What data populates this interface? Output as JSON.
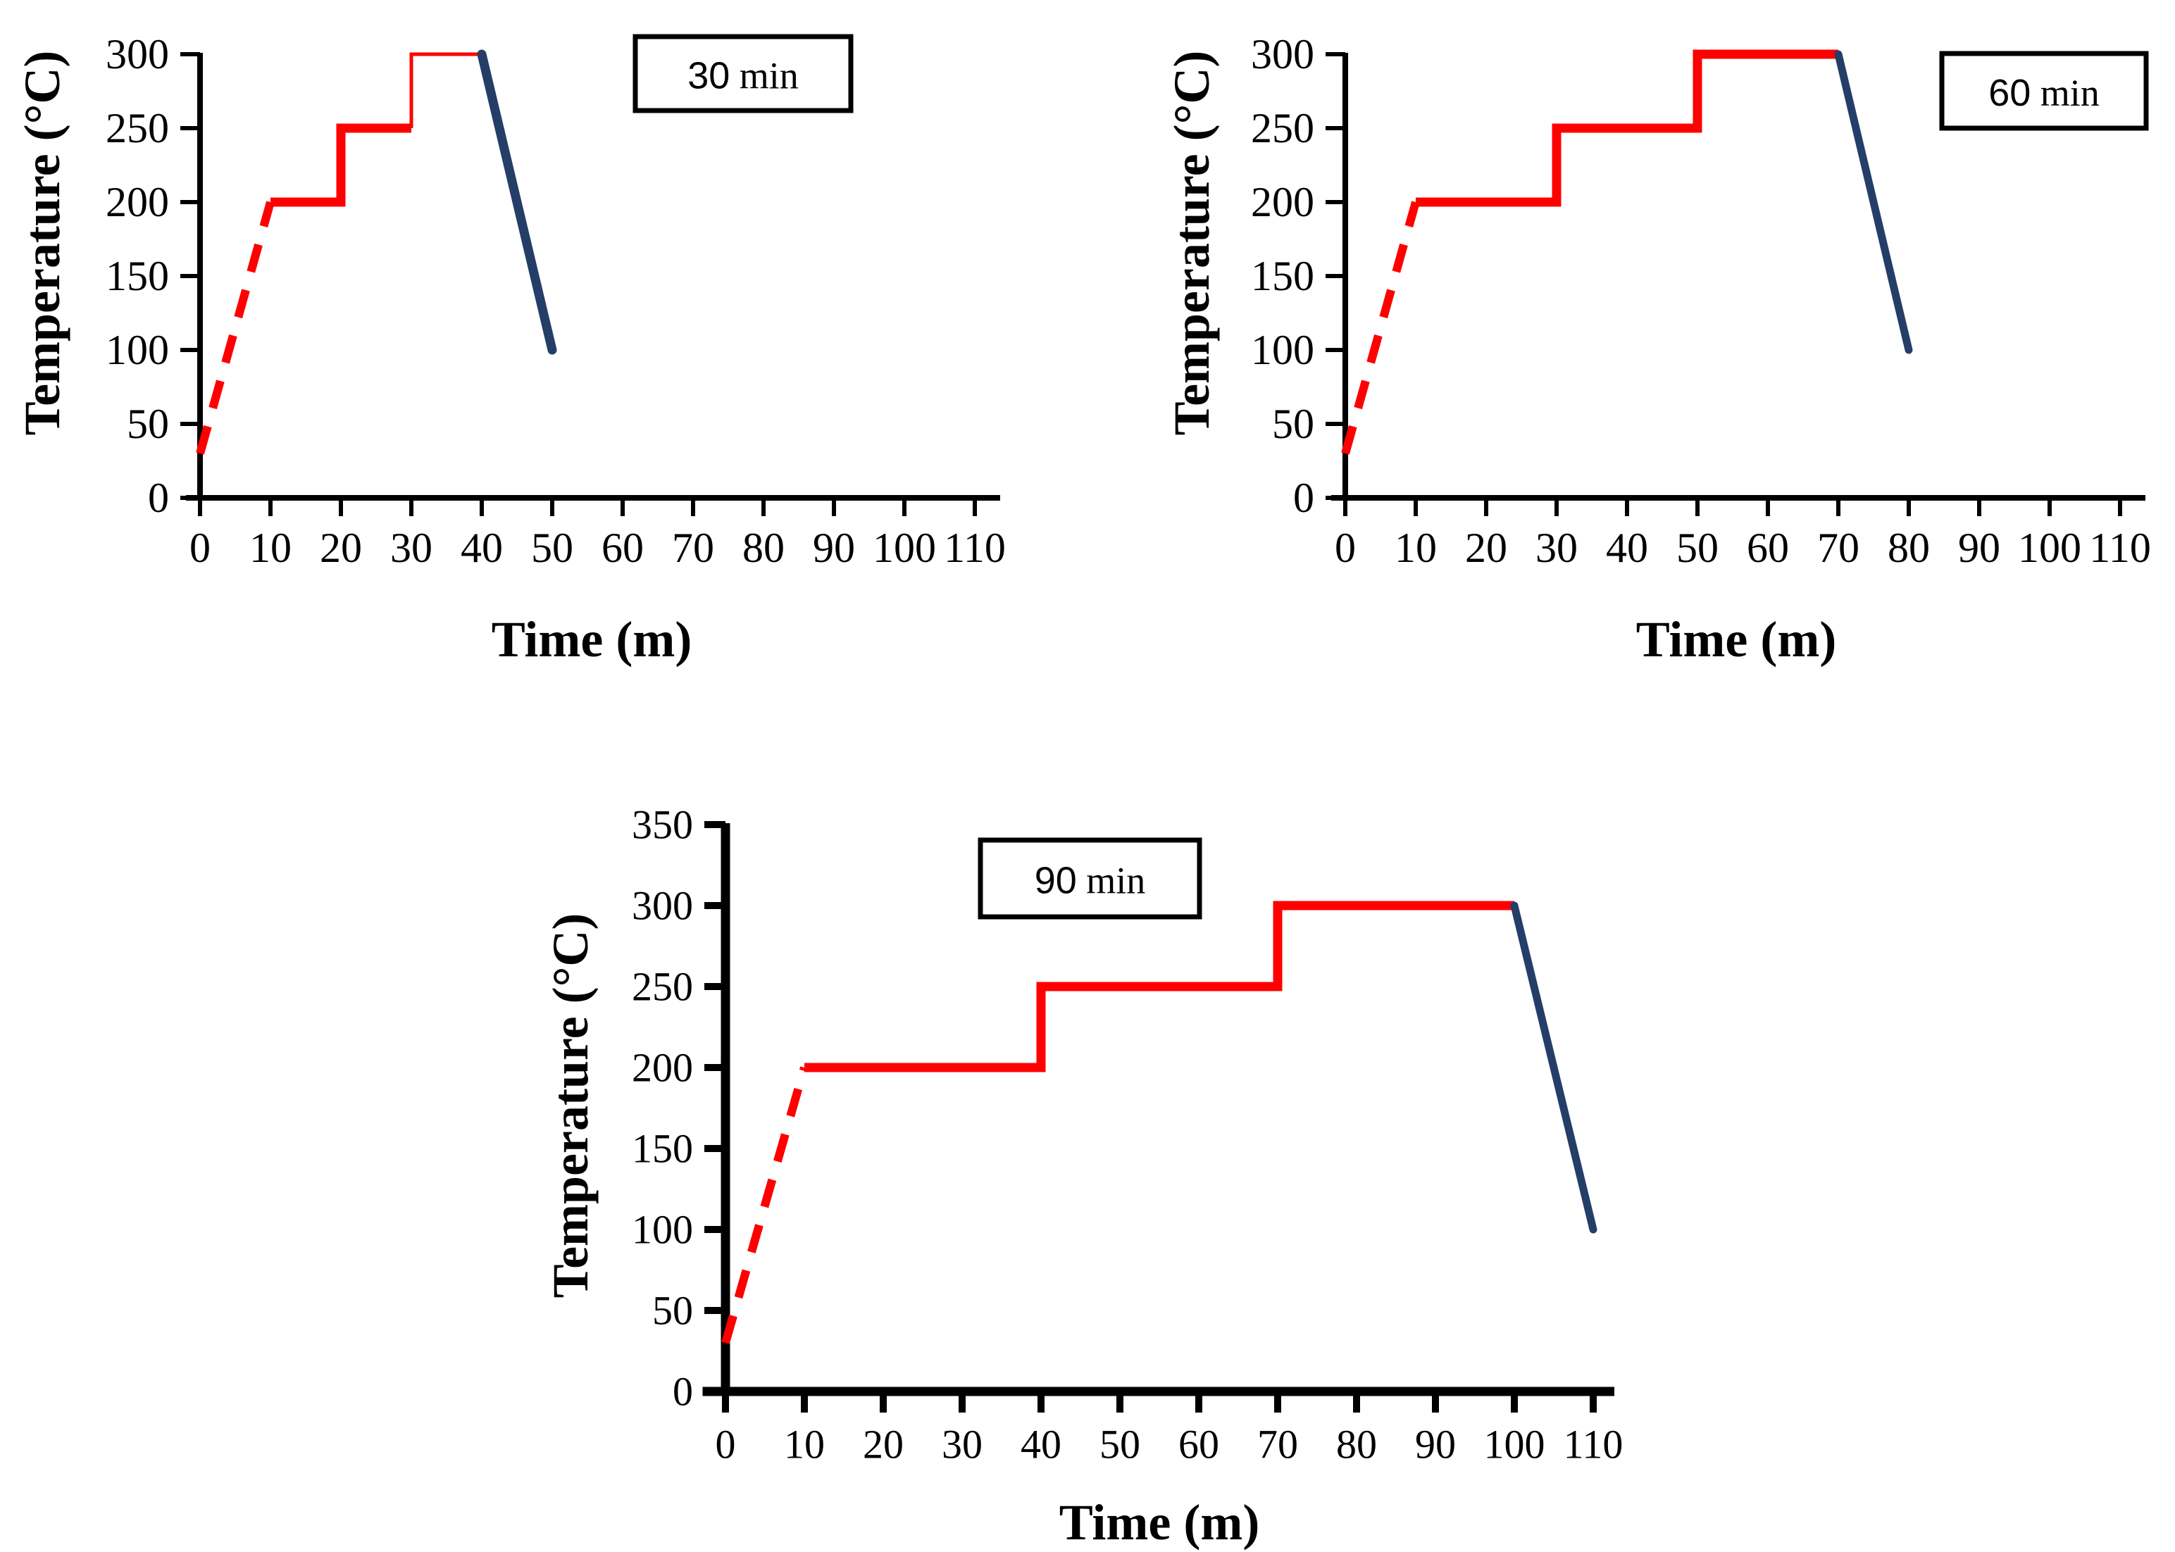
{
  "figure": {
    "background": "#ffffff",
    "axis_color": "#000000",
    "ramp_color": "#FF0000",
    "cooldown_color": "#243E68"
  },
  "chart_data": [
    {
      "type": "line",
      "legend": "30 min",
      "xlabel": "Time (m)",
      "ylabel": "Temperature (°C)",
      "xlim": [
        0,
        110
      ],
      "ylim": [
        0,
        300
      ],
      "xticks": [
        0,
        10,
        20,
        30,
        40,
        50,
        60,
        70,
        80,
        90,
        100,
        110
      ],
      "yticks": [
        0,
        50,
        100,
        150,
        200,
        250,
        300
      ],
      "grid": false,
      "legend_position": "top-center",
      "series": [
        {
          "name": "heating-ramp",
          "style": "dashed",
          "color": "#FF0000",
          "width": 12,
          "points": [
            [
              0,
              30
            ],
            [
              10,
              200
            ]
          ]
        },
        {
          "name": "stepped-hold",
          "style": "solid",
          "color": "#FF0000",
          "width": 13,
          "points": [
            [
              10,
              200
            ],
            [
              20,
              200
            ],
            [
              20,
              250
            ],
            [
              30,
              250
            ]
          ]
        },
        {
          "name": "stepped-hold-thin",
          "style": "solid",
          "color": "#FF0000",
          "width": 5,
          "points": [
            [
              30,
              250
            ],
            [
              30,
              300
            ],
            [
              40,
              300
            ]
          ]
        },
        {
          "name": "cooldown",
          "style": "solid",
          "color": "#243E68",
          "width": 13,
          "points": [
            [
              40,
              300
            ],
            [
              50,
              100
            ]
          ]
        }
      ]
    },
    {
      "type": "line",
      "legend": "60 min",
      "xlabel": "Time (m)",
      "ylabel": "Temperature (°C)",
      "xlim": [
        0,
        110
      ],
      "ylim": [
        0,
        300
      ],
      "xticks": [
        0,
        10,
        20,
        30,
        40,
        50,
        60,
        70,
        80,
        90,
        100,
        110
      ],
      "yticks": [
        0,
        50,
        100,
        150,
        200,
        250,
        300
      ],
      "grid": false,
      "legend_position": "top-right",
      "series": [
        {
          "name": "heating-ramp",
          "style": "dashed",
          "color": "#FF0000",
          "width": 12,
          "points": [
            [
              0,
              30
            ],
            [
              10,
              200
            ]
          ]
        },
        {
          "name": "stepped-hold",
          "style": "solid",
          "color": "#FF0000",
          "width": 13,
          "points": [
            [
              10,
              200
            ],
            [
              30,
              200
            ],
            [
              30,
              250
            ],
            [
              50,
              250
            ],
            [
              50,
              300
            ],
            [
              70,
              300
            ]
          ]
        },
        {
          "name": "cooldown",
          "style": "solid",
          "color": "#243E68",
          "width": 11,
          "points": [
            [
              70,
              300
            ],
            [
              80,
              100
            ]
          ]
        }
      ]
    },
    {
      "type": "line",
      "legend": "90 min",
      "xlabel": "Time (m)",
      "ylabel": "Temperature (°C)",
      "xlim": [
        0,
        110
      ],
      "ylim": [
        0,
        350
      ],
      "xticks": [
        0,
        10,
        20,
        30,
        40,
        50,
        60,
        70,
        80,
        90,
        100,
        110
      ],
      "yticks": [
        0,
        50,
        100,
        150,
        200,
        250,
        300,
        350
      ],
      "grid": false,
      "legend_position": "top-left",
      "series": [
        {
          "name": "heating-ramp",
          "style": "dashed",
          "color": "#FF0000",
          "width": 12,
          "points": [
            [
              0,
              30
            ],
            [
              10,
              200
            ]
          ]
        },
        {
          "name": "stepped-hold",
          "style": "solid",
          "color": "#FF0000",
          "width": 13,
          "points": [
            [
              10,
              200
            ],
            [
              40,
              200
            ],
            [
              40,
              250
            ],
            [
              70,
              250
            ],
            [
              70,
              300
            ],
            [
              100,
              300
            ]
          ]
        },
        {
          "name": "cooldown",
          "style": "solid",
          "color": "#243E68",
          "width": 11,
          "points": [
            [
              100,
              300
            ],
            [
              110,
              100
            ]
          ]
        }
      ]
    }
  ]
}
